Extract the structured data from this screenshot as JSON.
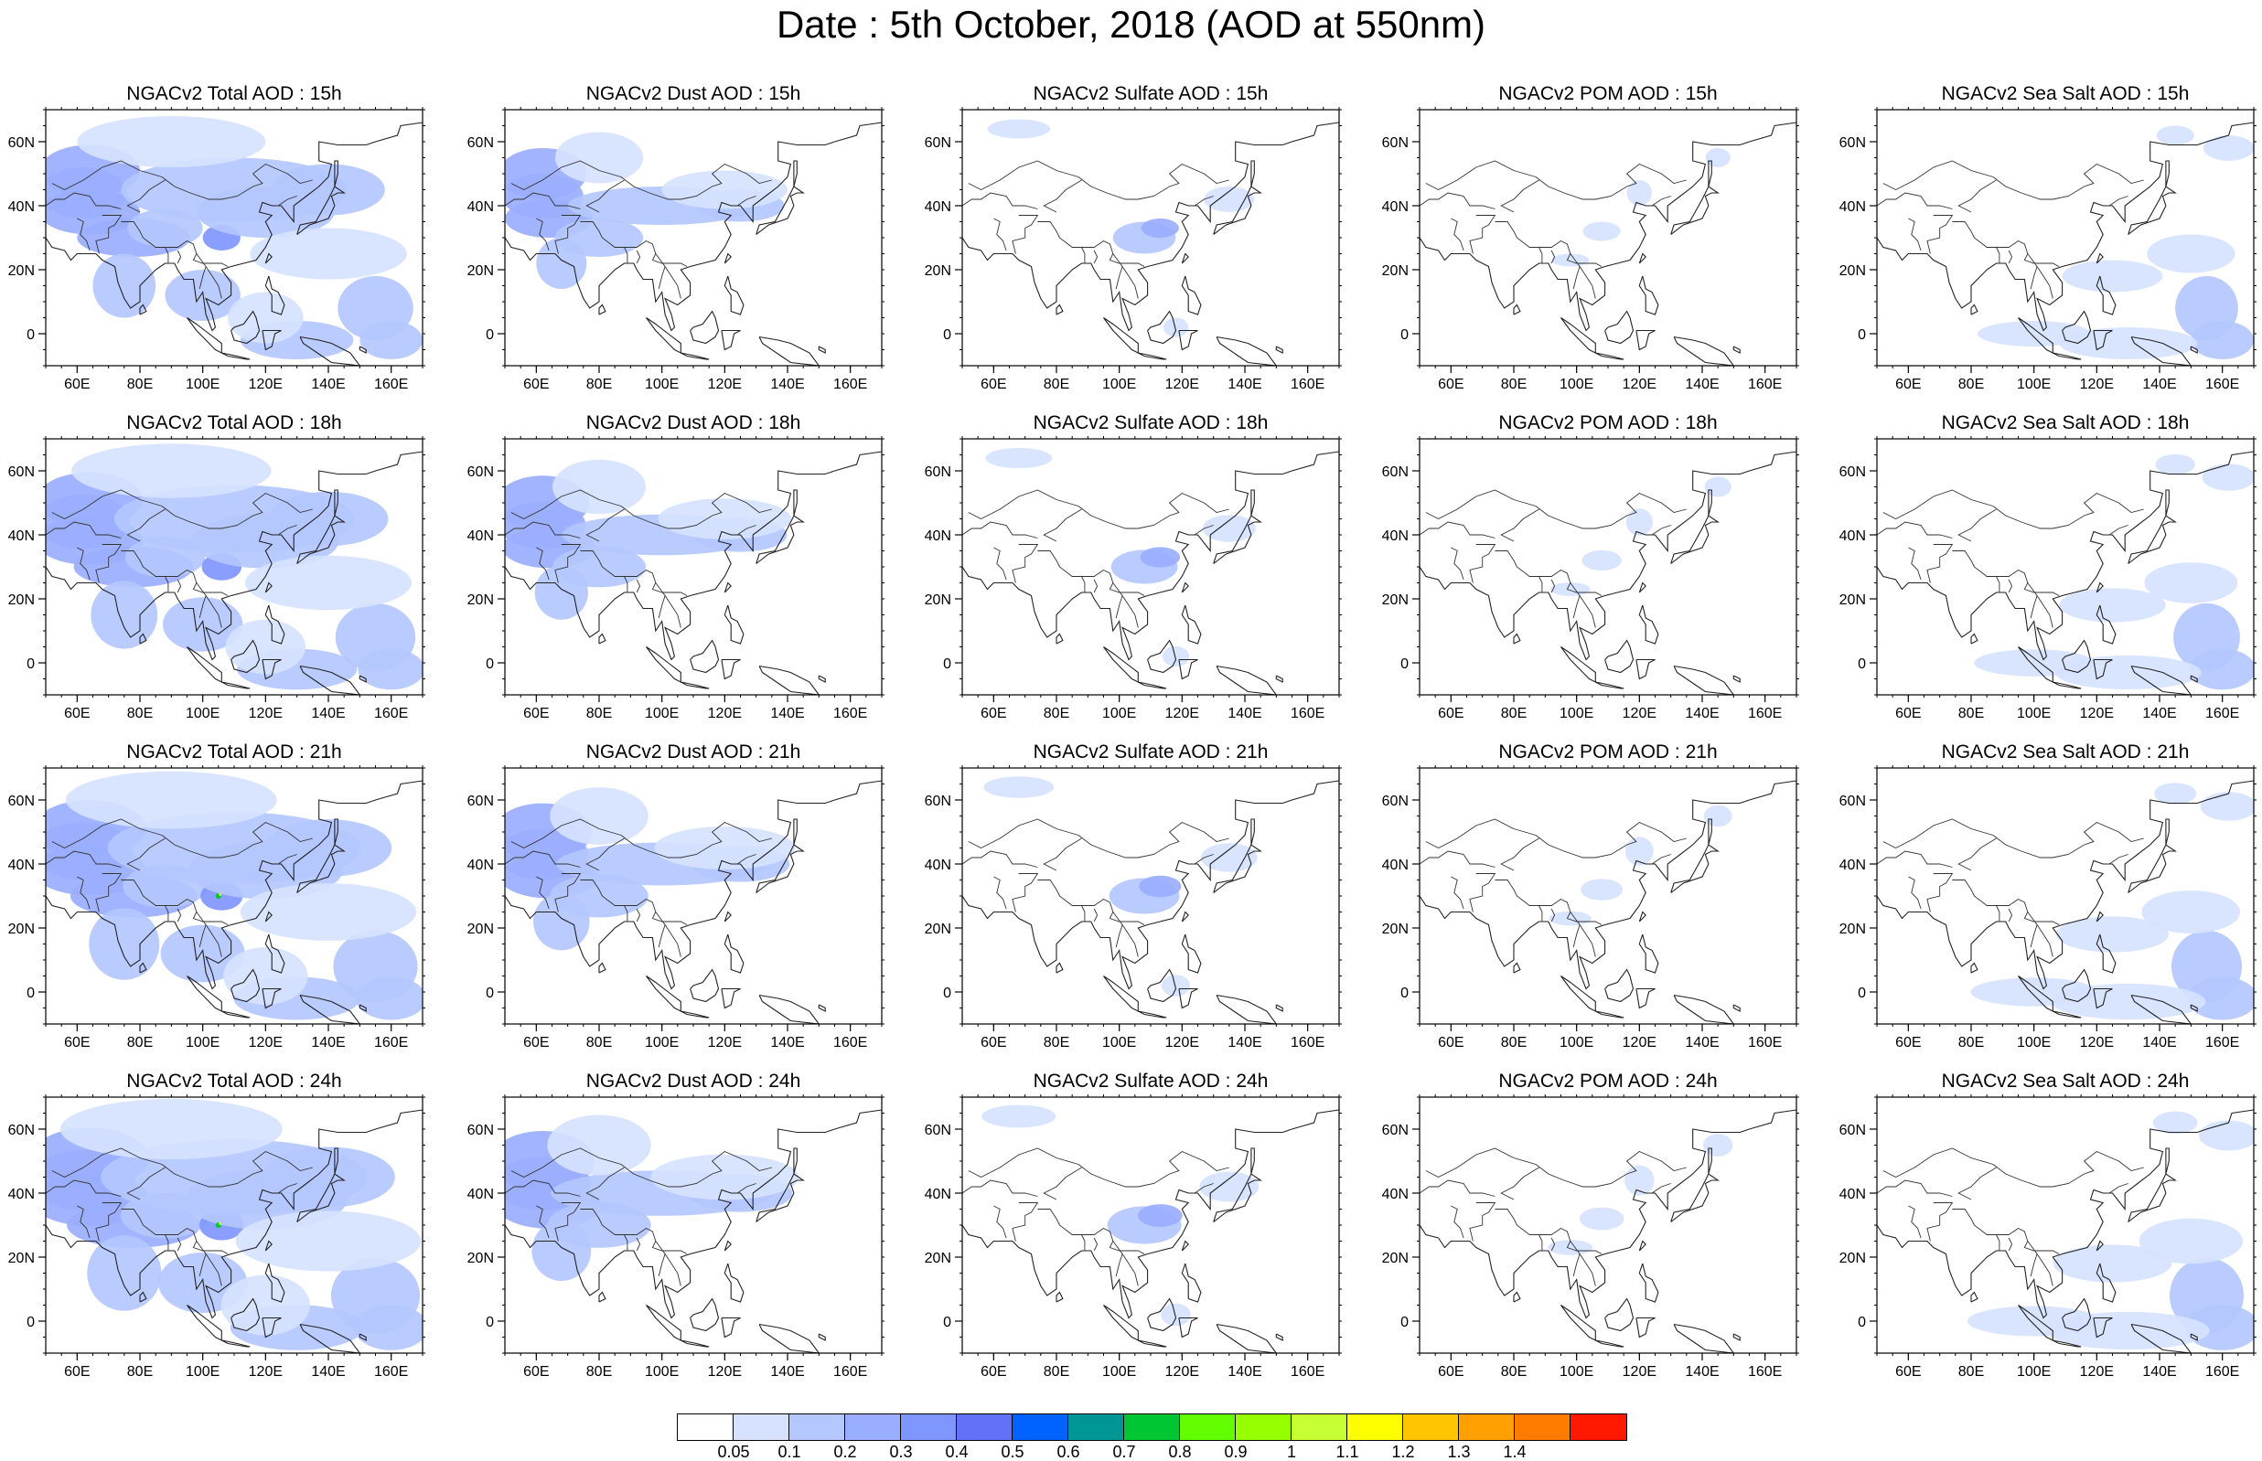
{
  "title": "Date : 5th October, 2018 (AOD at 550nm)",
  "panels": [
    [
      "NGACv2 Total AOD : 15h",
      "NGACv2 Dust AOD : 15h",
      "NGACv2 Sulfate AOD : 15h",
      "NGACv2 POM AOD : 15h",
      "NGACv2 Sea Salt AOD : 15h"
    ],
    [
      "NGACv2 Total AOD : 18h",
      "NGACv2 Dust AOD : 18h",
      "NGACv2 Sulfate AOD : 18h",
      "NGACv2 POM AOD : 18h",
      "NGACv2 Sea Salt AOD : 18h"
    ],
    [
      "NGACv2 Total AOD : 21h",
      "NGACv2 Dust AOD : 21h",
      "NGACv2 Sulfate AOD : 21h",
      "NGACv2 POM AOD : 21h",
      "NGACv2 Sea Salt AOD : 21h"
    ],
    [
      "NGACv2 Total AOD : 24h",
      "NGACv2 Dust AOD : 24h",
      "NGACv2 Sulfate AOD : 24h",
      "NGACv2 POM AOD : 24h",
      "NGACv2 Sea Salt  AOD : 24h"
    ]
  ],
  "map_extent": {
    "lon_min": 50,
    "lon_max": 170,
    "lat_min": -10,
    "lat_max": 70
  },
  "x_ticks": [
    {
      "lon": 60,
      "label": "60E"
    },
    {
      "lon": 80,
      "label": "80E"
    },
    {
      "lon": 100,
      "label": "100E"
    },
    {
      "lon": 120,
      "label": "120E"
    },
    {
      "lon": 140,
      "label": "140E"
    },
    {
      "lon": 160,
      "label": "160E"
    }
  ],
  "y_ticks": [
    {
      "lat": 60,
      "label": "60N"
    },
    {
      "lat": 40,
      "label": "40N"
    },
    {
      "lat": 20,
      "label": "20N"
    },
    {
      "lat": 0,
      "label": "0"
    }
  ],
  "colorbar": {
    "colors": [
      "#ffffff",
      "#d6e2ff",
      "#b4c7ff",
      "#9aaeff",
      "#7f96ff",
      "#6370f8",
      "#0063ff",
      "#009696",
      "#00c633",
      "#63ff00",
      "#96ff00",
      "#c6ff33",
      "#ffff00",
      "#ffc600",
      "#ffa000",
      "#ff7c00",
      "#ff1900"
    ],
    "labels": [
      "0.05",
      "0.1",
      "0.2",
      "0.3",
      "0.4",
      "0.5",
      "0.6",
      "0.7",
      "0.8",
      "0.9",
      "1",
      "1.1",
      "1.2",
      "1.3",
      "1.4"
    ]
  }
}
